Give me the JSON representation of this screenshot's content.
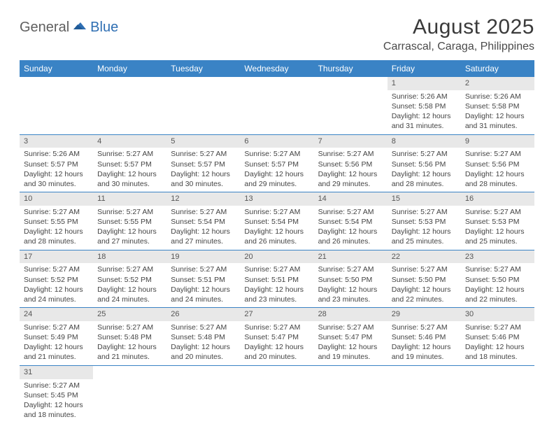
{
  "logo": {
    "part1": "General",
    "part2": "Blue"
  },
  "title": "August 2025",
  "location": "Carrascal, Caraga, Philippines",
  "daynames": [
    "Sunday",
    "Monday",
    "Tuesday",
    "Wednesday",
    "Thursday",
    "Friday",
    "Saturday"
  ],
  "colors": {
    "header_bg": "#3a83c5",
    "header_text": "#ffffff",
    "daynum_bg": "#e8e8e8",
    "rule": "#3a83c5",
    "logo_gray": "#5f5f5f",
    "logo_blue": "#2f6fb3"
  },
  "weeks": [
    [
      {
        "num": "",
        "lines": []
      },
      {
        "num": "",
        "lines": []
      },
      {
        "num": "",
        "lines": []
      },
      {
        "num": "",
        "lines": []
      },
      {
        "num": "",
        "lines": []
      },
      {
        "num": "1",
        "lines": [
          "Sunrise: 5:26 AM",
          "Sunset: 5:58 PM",
          "Daylight: 12 hours",
          "and 31 minutes."
        ]
      },
      {
        "num": "2",
        "lines": [
          "Sunrise: 5:26 AM",
          "Sunset: 5:58 PM",
          "Daylight: 12 hours",
          "and 31 minutes."
        ]
      }
    ],
    [
      {
        "num": "3",
        "lines": [
          "Sunrise: 5:26 AM",
          "Sunset: 5:57 PM",
          "Daylight: 12 hours",
          "and 30 minutes."
        ]
      },
      {
        "num": "4",
        "lines": [
          "Sunrise: 5:27 AM",
          "Sunset: 5:57 PM",
          "Daylight: 12 hours",
          "and 30 minutes."
        ]
      },
      {
        "num": "5",
        "lines": [
          "Sunrise: 5:27 AM",
          "Sunset: 5:57 PM",
          "Daylight: 12 hours",
          "and 30 minutes."
        ]
      },
      {
        "num": "6",
        "lines": [
          "Sunrise: 5:27 AM",
          "Sunset: 5:57 PM",
          "Daylight: 12 hours",
          "and 29 minutes."
        ]
      },
      {
        "num": "7",
        "lines": [
          "Sunrise: 5:27 AM",
          "Sunset: 5:56 PM",
          "Daylight: 12 hours",
          "and 29 minutes."
        ]
      },
      {
        "num": "8",
        "lines": [
          "Sunrise: 5:27 AM",
          "Sunset: 5:56 PM",
          "Daylight: 12 hours",
          "and 28 minutes."
        ]
      },
      {
        "num": "9",
        "lines": [
          "Sunrise: 5:27 AM",
          "Sunset: 5:56 PM",
          "Daylight: 12 hours",
          "and 28 minutes."
        ]
      }
    ],
    [
      {
        "num": "10",
        "lines": [
          "Sunrise: 5:27 AM",
          "Sunset: 5:55 PM",
          "Daylight: 12 hours",
          "and 28 minutes."
        ]
      },
      {
        "num": "11",
        "lines": [
          "Sunrise: 5:27 AM",
          "Sunset: 5:55 PM",
          "Daylight: 12 hours",
          "and 27 minutes."
        ]
      },
      {
        "num": "12",
        "lines": [
          "Sunrise: 5:27 AM",
          "Sunset: 5:54 PM",
          "Daylight: 12 hours",
          "and 27 minutes."
        ]
      },
      {
        "num": "13",
        "lines": [
          "Sunrise: 5:27 AM",
          "Sunset: 5:54 PM",
          "Daylight: 12 hours",
          "and 26 minutes."
        ]
      },
      {
        "num": "14",
        "lines": [
          "Sunrise: 5:27 AM",
          "Sunset: 5:54 PM",
          "Daylight: 12 hours",
          "and 26 minutes."
        ]
      },
      {
        "num": "15",
        "lines": [
          "Sunrise: 5:27 AM",
          "Sunset: 5:53 PM",
          "Daylight: 12 hours",
          "and 25 minutes."
        ]
      },
      {
        "num": "16",
        "lines": [
          "Sunrise: 5:27 AM",
          "Sunset: 5:53 PM",
          "Daylight: 12 hours",
          "and 25 minutes."
        ]
      }
    ],
    [
      {
        "num": "17",
        "lines": [
          "Sunrise: 5:27 AM",
          "Sunset: 5:52 PM",
          "Daylight: 12 hours",
          "and 24 minutes."
        ]
      },
      {
        "num": "18",
        "lines": [
          "Sunrise: 5:27 AM",
          "Sunset: 5:52 PM",
          "Daylight: 12 hours",
          "and 24 minutes."
        ]
      },
      {
        "num": "19",
        "lines": [
          "Sunrise: 5:27 AM",
          "Sunset: 5:51 PM",
          "Daylight: 12 hours",
          "and 24 minutes."
        ]
      },
      {
        "num": "20",
        "lines": [
          "Sunrise: 5:27 AM",
          "Sunset: 5:51 PM",
          "Daylight: 12 hours",
          "and 23 minutes."
        ]
      },
      {
        "num": "21",
        "lines": [
          "Sunrise: 5:27 AM",
          "Sunset: 5:50 PM",
          "Daylight: 12 hours",
          "and 23 minutes."
        ]
      },
      {
        "num": "22",
        "lines": [
          "Sunrise: 5:27 AM",
          "Sunset: 5:50 PM",
          "Daylight: 12 hours",
          "and 22 minutes."
        ]
      },
      {
        "num": "23",
        "lines": [
          "Sunrise: 5:27 AM",
          "Sunset: 5:50 PM",
          "Daylight: 12 hours",
          "and 22 minutes."
        ]
      }
    ],
    [
      {
        "num": "24",
        "lines": [
          "Sunrise: 5:27 AM",
          "Sunset: 5:49 PM",
          "Daylight: 12 hours",
          "and 21 minutes."
        ]
      },
      {
        "num": "25",
        "lines": [
          "Sunrise: 5:27 AM",
          "Sunset: 5:48 PM",
          "Daylight: 12 hours",
          "and 21 minutes."
        ]
      },
      {
        "num": "26",
        "lines": [
          "Sunrise: 5:27 AM",
          "Sunset: 5:48 PM",
          "Daylight: 12 hours",
          "and 20 minutes."
        ]
      },
      {
        "num": "27",
        "lines": [
          "Sunrise: 5:27 AM",
          "Sunset: 5:47 PM",
          "Daylight: 12 hours",
          "and 20 minutes."
        ]
      },
      {
        "num": "28",
        "lines": [
          "Sunrise: 5:27 AM",
          "Sunset: 5:47 PM",
          "Daylight: 12 hours",
          "and 19 minutes."
        ]
      },
      {
        "num": "29",
        "lines": [
          "Sunrise: 5:27 AM",
          "Sunset: 5:46 PM",
          "Daylight: 12 hours",
          "and 19 minutes."
        ]
      },
      {
        "num": "30",
        "lines": [
          "Sunrise: 5:27 AM",
          "Sunset: 5:46 PM",
          "Daylight: 12 hours",
          "and 18 minutes."
        ]
      }
    ],
    [
      {
        "num": "31",
        "lines": [
          "Sunrise: 5:27 AM",
          "Sunset: 5:45 PM",
          "Daylight: 12 hours",
          "and 18 minutes."
        ]
      },
      {
        "num": "",
        "lines": []
      },
      {
        "num": "",
        "lines": []
      },
      {
        "num": "",
        "lines": []
      },
      {
        "num": "",
        "lines": []
      },
      {
        "num": "",
        "lines": []
      },
      {
        "num": "",
        "lines": []
      }
    ]
  ]
}
